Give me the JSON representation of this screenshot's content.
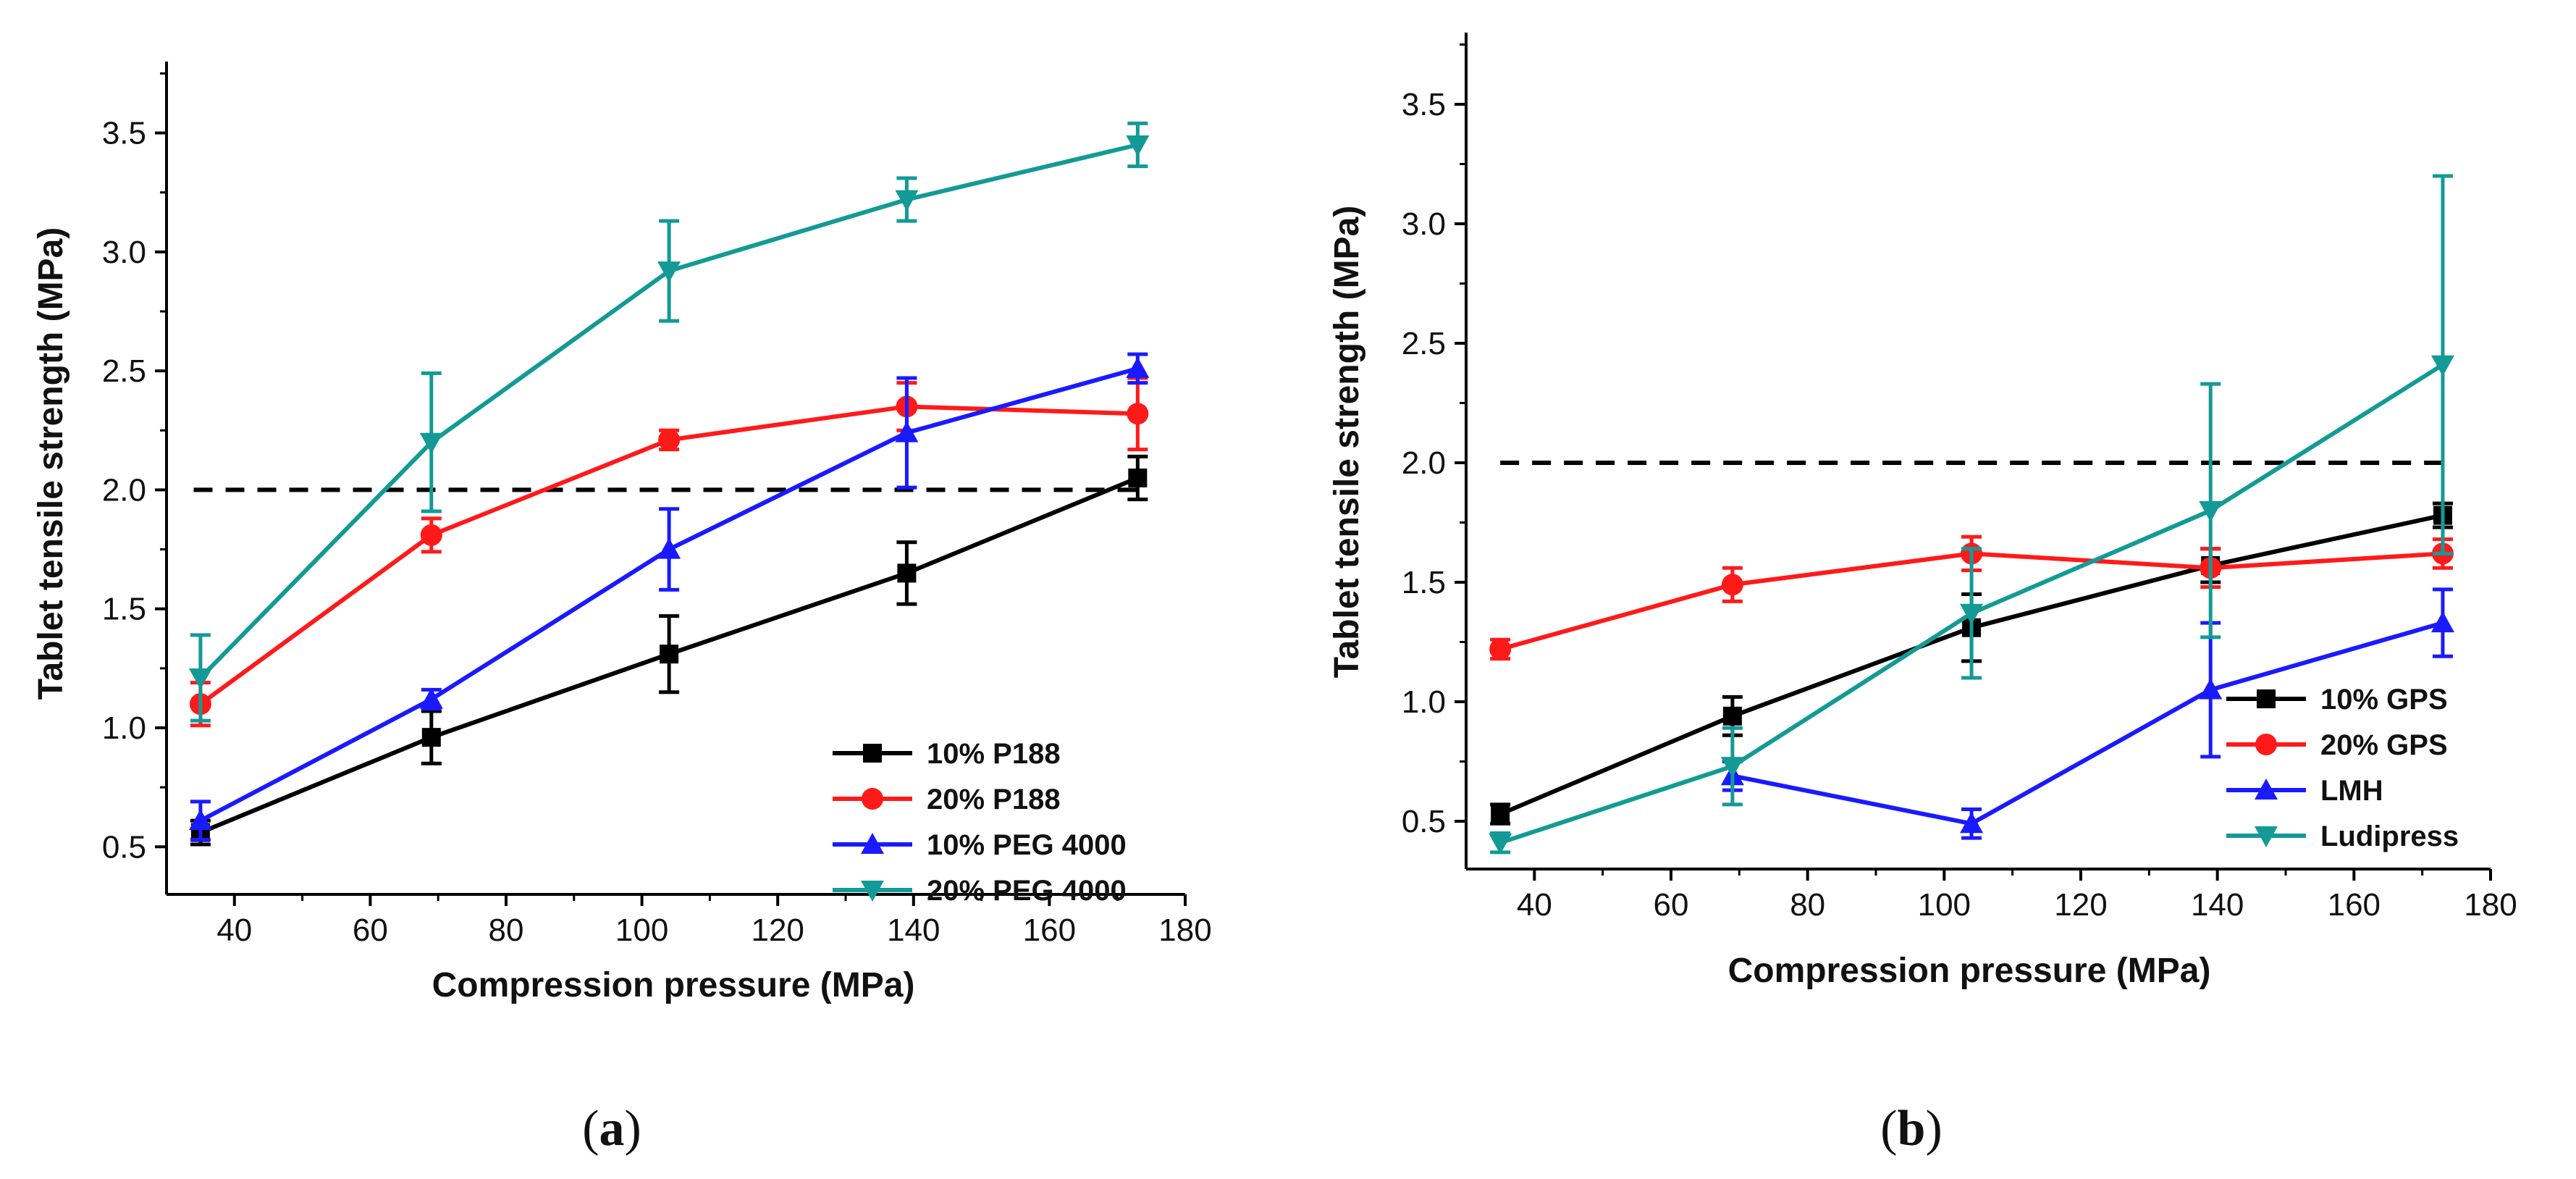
{
  "chart_data": [
    {
      "panel_label": "a",
      "type": "line",
      "xlabel": "Compression pressure (MPa)",
      "ylabel": "Tablet tensile strength (MPa)",
      "xlim": [
        30,
        180
      ],
      "ylim": [
        0.3,
        3.8
      ],
      "xticks": [
        40,
        60,
        80,
        100,
        120,
        140,
        160,
        180
      ],
      "yticks": [
        0.5,
        1.0,
        1.5,
        2.0,
        2.5,
        3.0,
        3.5
      ],
      "xtick_labels": [
        "40",
        "60",
        "80",
        "100",
        "120",
        "140",
        "160",
        "180"
      ],
      "ytick_labels": [
        "0.5",
        "1.0",
        "1.5",
        "2.0",
        "2.5",
        "3.0",
        "3.5"
      ],
      "reference_line": {
        "y": 2.0,
        "style": "dashed",
        "x_range": [
          34,
          173
        ]
      },
      "legend_position": "bottom-right",
      "x": [
        35,
        69,
        104,
        139,
        173
      ],
      "series": [
        {
          "name": "10% P188",
          "color": "#000000",
          "marker": "square",
          "values": [
            0.56,
            0.96,
            1.31,
            1.65,
            2.05
          ],
          "errors": [
            0.05,
            0.11,
            0.16,
            0.13,
            0.09
          ]
        },
        {
          "name": "20% P188",
          "color": "#ff1a1a",
          "marker": "circle",
          "values": [
            1.1,
            1.81,
            2.21,
            2.35,
            2.32
          ],
          "errors": [
            0.09,
            0.07,
            0.04,
            0.1,
            0.15
          ]
        },
        {
          "name": "10% PEG 4000",
          "color": "#1a1aff",
          "marker": "triangle-up",
          "values": [
            0.61,
            1.12,
            1.75,
            2.24,
            2.51
          ],
          "errors": [
            0.08,
            0.04,
            0.17,
            0.23,
            0.06
          ]
        },
        {
          "name": "20% PEG 4000",
          "color": "#139a96",
          "marker": "triangle-down",
          "values": [
            1.21,
            2.2,
            2.92,
            3.22,
            3.45
          ],
          "errors": [
            0.18,
            0.29,
            0.21,
            0.09,
            0.09
          ]
        }
      ]
    },
    {
      "panel_label": "b",
      "type": "line",
      "xlabel": "Compression pressure (MPa)",
      "ylabel": "Tablet tensile strength (MPa)",
      "xlim": [
        30,
        180
      ],
      "ylim": [
        0.3,
        3.8
      ],
      "xticks": [
        40,
        60,
        80,
        100,
        120,
        140,
        160,
        180
      ],
      "yticks": [
        0.5,
        1.0,
        1.5,
        2.0,
        2.5,
        3.0,
        3.5
      ],
      "xtick_labels": [
        "40",
        "60",
        "80",
        "100",
        "120",
        "140",
        "160",
        "180"
      ],
      "ytick_labels": [
        "0.5",
        "1.0",
        "1.5",
        "2.0",
        "2.5",
        "3.0",
        "3.5"
      ],
      "reference_line": {
        "y": 2.0,
        "style": "dashed",
        "x_range": [
          35,
          173
        ]
      },
      "legend_position": "bottom-right",
      "x": [
        35,
        69,
        104,
        139,
        173
      ],
      "series": [
        {
          "name": "10% GPS",
          "color": "#000000",
          "marker": "square",
          "values": [
            0.53,
            0.94,
            1.31,
            1.57,
            1.78
          ],
          "errors": [
            0.04,
            0.08,
            0.14,
            0.07,
            0.05
          ]
        },
        {
          "name": "20% GPS",
          "color": "#ff1a1a",
          "marker": "circle",
          "values": [
            1.22,
            1.49,
            1.62,
            1.56,
            1.62
          ],
          "errors": [
            0.04,
            0.07,
            0.07,
            0.08,
            0.06
          ]
        },
        {
          "name": "LMH",
          "color": "#1a1aff",
          "marker": "triangle-up",
          "values": [
            null,
            0.69,
            0.49,
            1.05,
            1.33
          ],
          "errors": [
            null,
            0.06,
            0.06,
            0.28,
            0.14
          ]
        },
        {
          "name": "Ludipress",
          "color": "#139a96",
          "marker": "triangle-down",
          "values": [
            0.41,
            0.73,
            1.37,
            1.8,
            2.41
          ],
          "errors": [
            0.04,
            0.16,
            0.27,
            0.53,
            0.79
          ]
        }
      ]
    }
  ]
}
